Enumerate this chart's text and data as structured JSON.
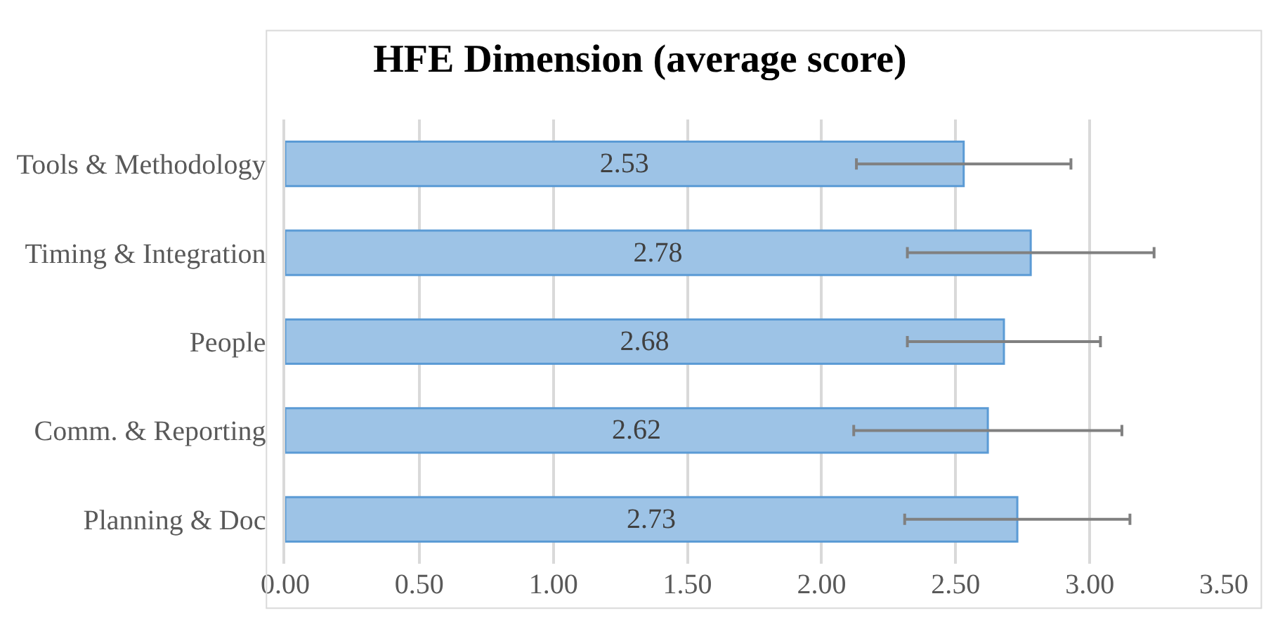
{
  "chart_data": {
    "type": "bar",
    "orientation": "horizontal",
    "title": "HFE Dimension (average score)",
    "categories": [
      "Tools & Methodology",
      "Timing & Integration",
      "People",
      "Comm. & Reporting",
      "Planning & Doc"
    ],
    "values": [
      2.53,
      2.78,
      2.68,
      2.62,
      2.73
    ],
    "errors": [
      0.4,
      0.46,
      0.36,
      0.5,
      0.42
    ],
    "color": "#9dc3e6",
    "xlim": [
      0,
      3.5
    ],
    "xticks": [
      {
        "value": 0,
        "label": "0.00"
      },
      {
        "value": 0.5,
        "label": "0.50"
      },
      {
        "value": 1,
        "label": "1.00"
      },
      {
        "value": 1.5,
        "label": "1.50"
      },
      {
        "value": 2,
        "label": "2.00"
      },
      {
        "value": 2.5,
        "label": "2.50"
      },
      {
        "value": 3,
        "label": "3.00"
      },
      {
        "value": 3.5,
        "label": "3.50"
      }
    ],
    "grid": "x",
    "data_labels": true,
    "legend": false
  }
}
